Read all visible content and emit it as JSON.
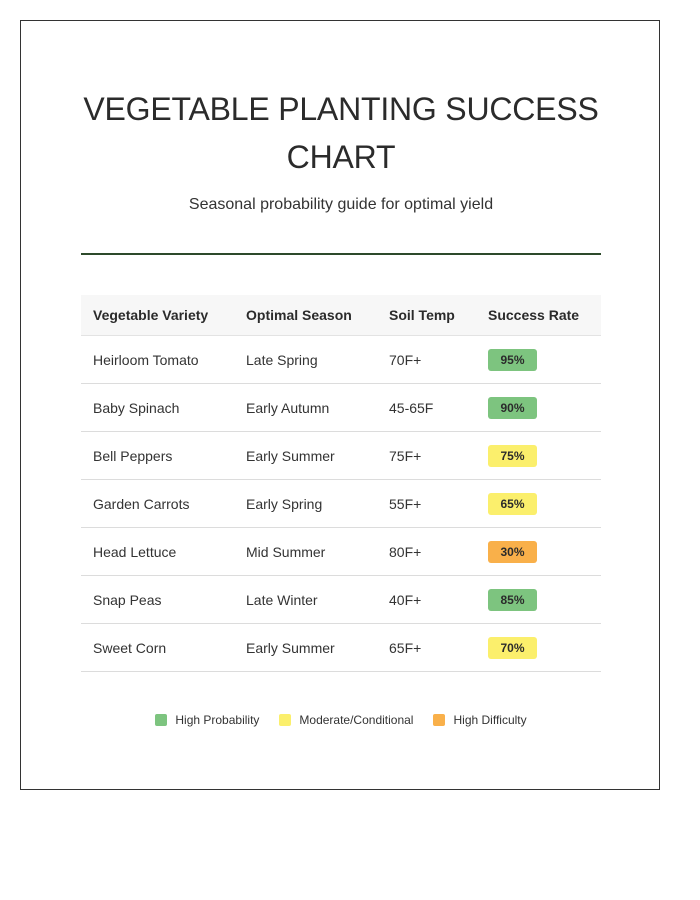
{
  "header": {
    "title": "VEGETABLE PLANTING SUCCESS CHART",
    "subtitle": "Seasonal probability guide for optimal yield"
  },
  "table": {
    "columns": [
      "Vegetable Variety",
      "Optimal Season",
      "Soil Temp",
      "Success Rate"
    ],
    "rows": [
      {
        "variety": "Heirloom Tomato",
        "season": "Late Spring",
        "soil_temp": "70F+",
        "success_rate": "95%",
        "level": "high"
      },
      {
        "variety": "Baby Spinach",
        "season": "Early Autumn",
        "soil_temp": "45-65F",
        "success_rate": "90%",
        "level": "high"
      },
      {
        "variety": "Bell Peppers",
        "season": "Early Summer",
        "soil_temp": "75F+",
        "success_rate": "75%",
        "level": "moderate"
      },
      {
        "variety": "Garden Carrots",
        "season": "Early Spring",
        "soil_temp": "55F+",
        "success_rate": "65%",
        "level": "moderate"
      },
      {
        "variety": "Head Lettuce",
        "season": "Mid Summer",
        "soil_temp": "80F+",
        "success_rate": "30%",
        "level": "difficult"
      },
      {
        "variety": "Snap Peas",
        "season": "Late Winter",
        "soil_temp": "40F+",
        "success_rate": "85%",
        "level": "high"
      },
      {
        "variety": "Sweet Corn",
        "season": "Early Summer",
        "soil_temp": "65F+",
        "success_rate": "70%",
        "level": "moderate"
      }
    ]
  },
  "legend": {
    "items": [
      {
        "label": "High Probability",
        "color": "#7dc47f"
      },
      {
        "label": "Moderate/Conditional",
        "color": "#fbef6c"
      },
      {
        "label": "High Difficulty",
        "color": "#f9b04a"
      }
    ]
  },
  "colors": {
    "rule": "#2d4a2b",
    "high": "#7dc47f",
    "moderate": "#fbef6c",
    "difficult": "#f9b04a"
  }
}
